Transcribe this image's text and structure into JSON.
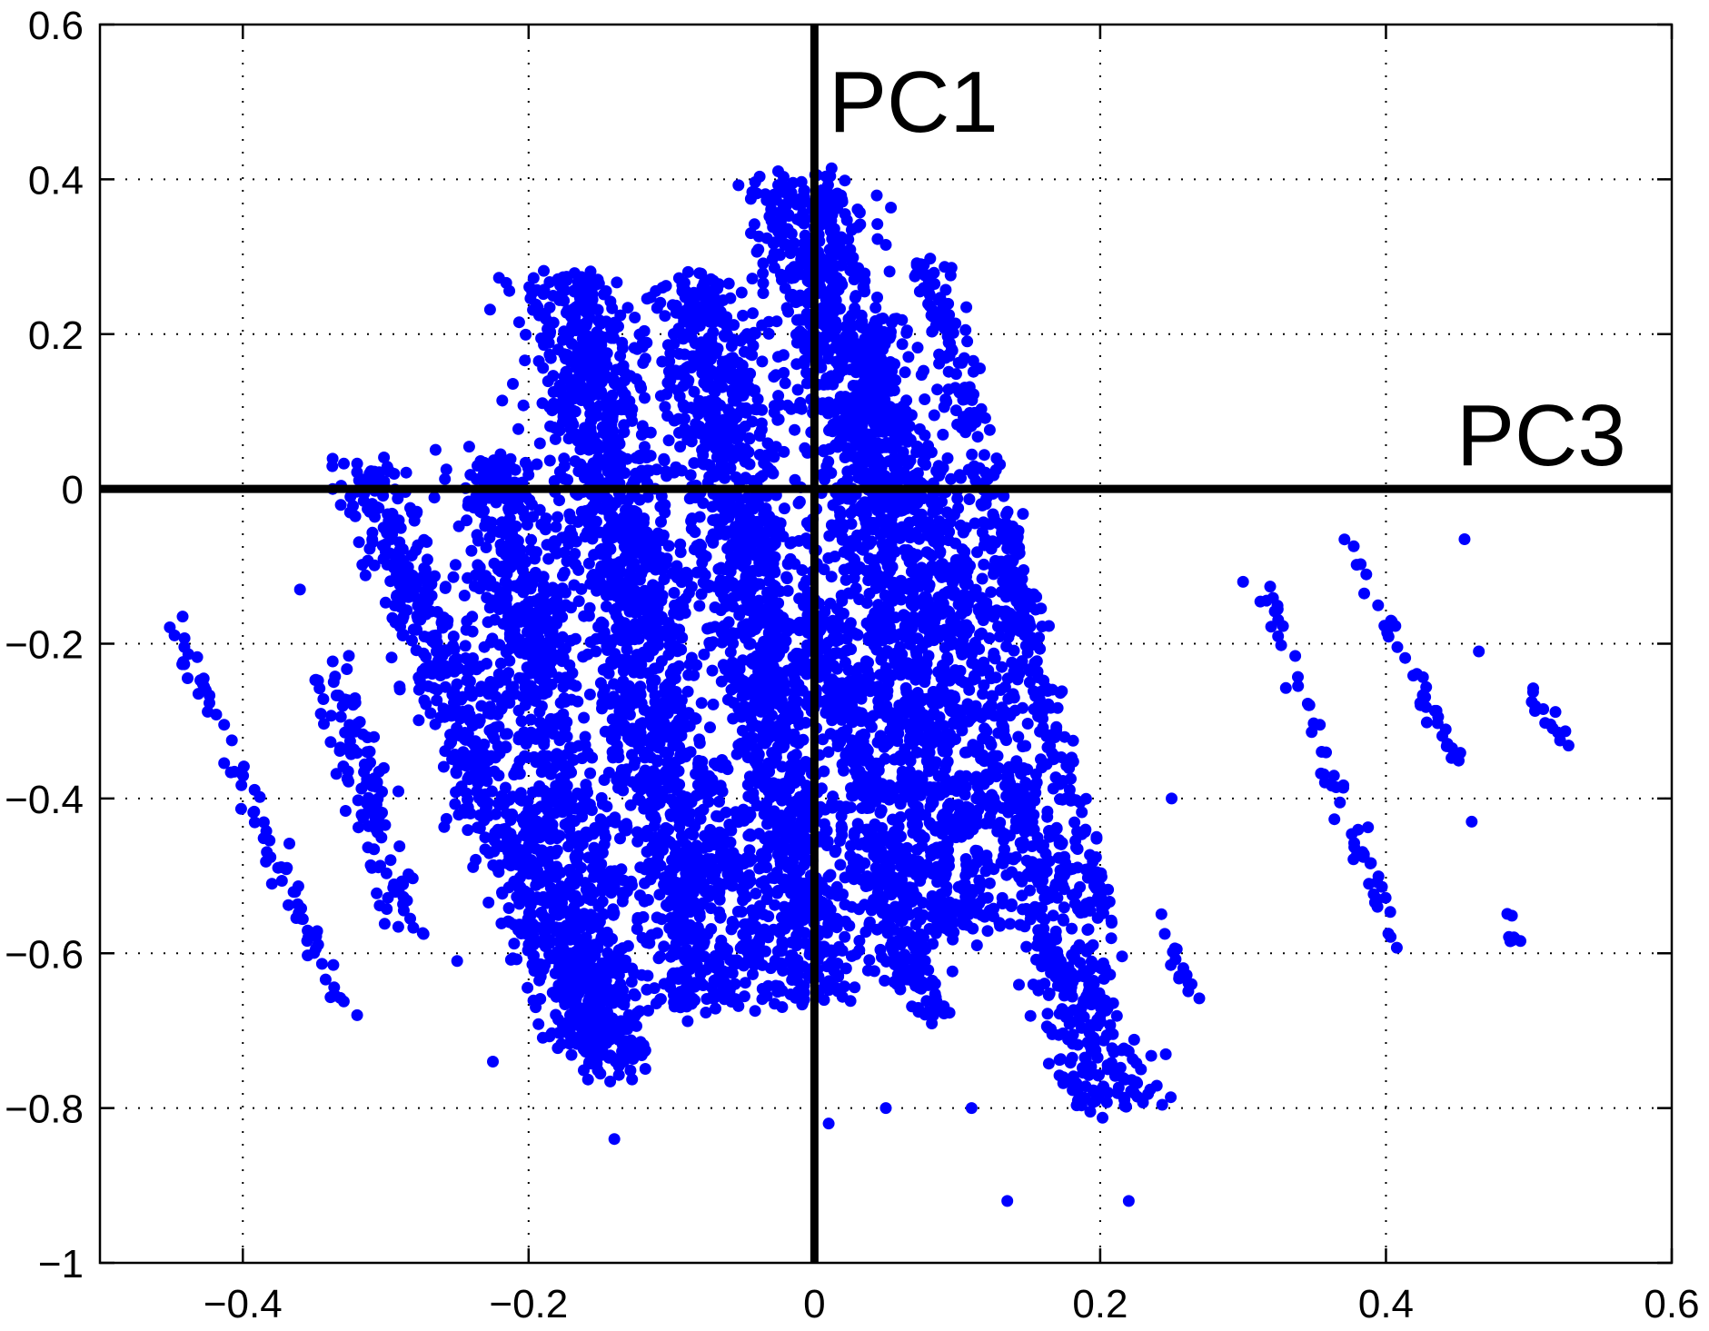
{
  "chart_data": {
    "type": "scatter",
    "title": "",
    "xlabel": "",
    "ylabel": "",
    "xlim": [
      -0.5,
      0.6
    ],
    "ylim": [
      -1,
      0.6
    ],
    "xticks": [
      -0.4,
      -0.2,
      0,
      0.2,
      0.4,
      0.6
    ],
    "yticks": [
      0.6,
      0.4,
      0.2,
      0,
      -0.2,
      -0.4,
      -0.6,
      -0.8,
      -1
    ],
    "xtick_labels": [
      "−0.4",
      "−0.2",
      "0",
      "0.2",
      "0.4",
      "0.6"
    ],
    "ytick_labels": [
      "0.6",
      "0.4",
      "0.2",
      "0",
      "−0.2",
      "−0.4",
      "−0.6",
      "−0.8",
      "−1"
    ],
    "grid": true,
    "grid_style": "dotted",
    "marker_color": "#0000ff",
    "reference_lines": [
      {
        "orientation": "vertical",
        "at_x": 0,
        "label": "PC1"
      },
      {
        "orientation": "horizontal",
        "at_y": 0,
        "label": "PC3"
      }
    ],
    "clusters": [
      {
        "from": [
          -0.315,
          0.03
        ],
        "to": [
          -0.155,
          -0.73
        ],
        "width": 0.03,
        "count": 700
      },
      {
        "from": [
          -0.225,
          0.04
        ],
        "to": [
          -0.14,
          -0.75
        ],
        "width": 0.035,
        "count": 900
      },
      {
        "from": [
          -0.17,
          0.27
        ],
        "to": [
          -0.075,
          -0.67
        ],
        "width": 0.045,
        "count": 1500
      },
      {
        "from": [
          -0.08,
          0.27
        ],
        "to": [
          0.005,
          -0.66
        ],
        "width": 0.04,
        "count": 1400
      },
      {
        "from": [
          -0.01,
          0.4
        ],
        "to": [
          0.1,
          -0.57
        ],
        "width": 0.045,
        "count": 1300
      },
      {
        "from": [
          0.03,
          0.22
        ],
        "to": [
          0.21,
          -0.8
        ],
        "width": 0.04,
        "count": 1000
      },
      {
        "from": [
          0.0,
          -0.15
        ],
        "to": [
          0.08,
          -0.68
        ],
        "width": 0.02,
        "count": 400
      },
      {
        "from": [
          0.08,
          0.3
        ],
        "to": [
          0.15,
          -0.2
        ],
        "width": 0.015,
        "count": 200
      },
      {
        "from": [
          0.13,
          -0.05
        ],
        "to": [
          0.2,
          -0.55
        ],
        "width": 0.015,
        "count": 150
      },
      {
        "from": [
          -0.45,
          -0.16
        ],
        "to": [
          -0.33,
          -0.68
        ],
        "width": 0.008,
        "count": 80
      },
      {
        "from": [
          -0.335,
          -0.23
        ],
        "to": [
          -0.285,
          -0.57
        ],
        "width": 0.02,
        "count": 120
      },
      {
        "from": [
          -0.075,
          -0.35
        ],
        "to": [
          -0.03,
          -0.66
        ],
        "width": 0.01,
        "count": 60
      },
      {
        "from": [
          0.025,
          -0.45
        ],
        "to": [
          0.07,
          -0.68
        ],
        "width": 0.01,
        "count": 40
      },
      {
        "from": [
          0.08,
          -0.3
        ],
        "to": [
          0.12,
          -0.55
        ],
        "width": 0.01,
        "count": 40
      },
      {
        "from": [
          0.24,
          -0.55
        ],
        "to": [
          0.265,
          -0.66
        ],
        "width": 0.004,
        "count": 15
      },
      {
        "from": [
          0.315,
          -0.14
        ],
        "to": [
          0.41,
          -0.6
        ],
        "width": 0.008,
        "count": 60
      },
      {
        "from": [
          0.37,
          -0.07
        ],
        "to": [
          0.45,
          -0.35
        ],
        "width": 0.006,
        "count": 40
      },
      {
        "from": [
          0.495,
          -0.24
        ],
        "to": [
          0.53,
          -0.34
        ],
        "width": 0.004,
        "count": 14
      },
      {
        "from": [
          0.48,
          -0.54
        ],
        "to": [
          0.5,
          -0.62
        ],
        "width": 0.004,
        "count": 8
      }
    ],
    "outliers": [
      [
        -0.36,
        -0.13
      ],
      [
        -0.25,
        -0.61
      ],
      [
        -0.225,
        -0.74
      ],
      [
        -0.32,
        -0.68
      ],
      [
        -0.14,
        -0.84
      ],
      [
        0.135,
        -0.92
      ],
      [
        0.22,
        -0.92
      ],
      [
        0.05,
        -0.8
      ],
      [
        0.455,
        -0.065
      ],
      [
        0.465,
        -0.21
      ],
      [
        0.46,
        -0.43
      ],
      [
        0.3,
        -0.12
      ],
      [
        -0.24,
        -0.08
      ],
      [
        0.25,
        -0.4
      ],
      [
        0.01,
        -0.82
      ],
      [
        0.11,
        -0.8
      ]
    ]
  }
}
